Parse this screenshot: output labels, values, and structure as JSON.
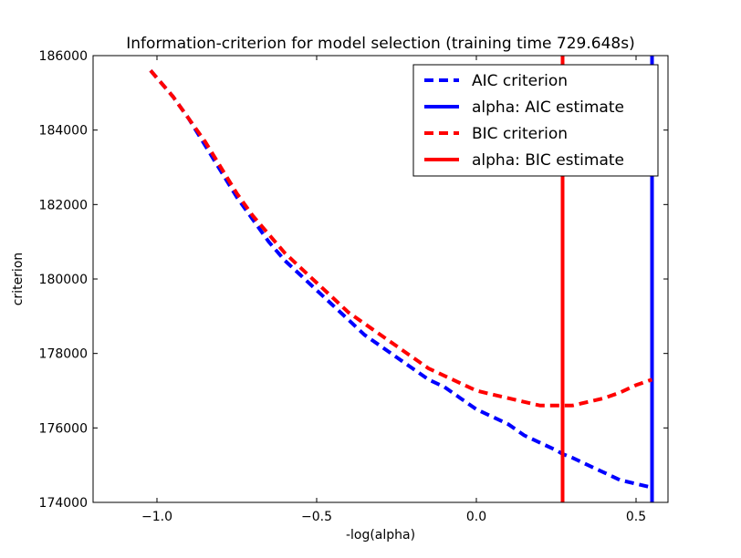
{
  "chart_data": {
    "type": "line",
    "title": "Information-criterion for model selection (training time 729.648s)",
    "xlabel": "-log(alpha)",
    "ylabel": "criterion",
    "xlim": [
      -1.2,
      0.6
    ],
    "ylim": [
      174000,
      186000
    ],
    "x_ticks": [
      -1.0,
      -0.5,
      0.0,
      0.5
    ],
    "x_tick_labels": [
      "−1.0",
      "−0.5",
      "0.0",
      "0.5"
    ],
    "y_ticks": [
      174000,
      176000,
      178000,
      180000,
      182000,
      184000,
      186000
    ],
    "y_tick_labels": [
      "174000",
      "176000",
      "178000",
      "180000",
      "182000",
      "184000",
      "186000"
    ],
    "grid": false,
    "legend_position": "top-right",
    "series": [
      {
        "name": "AIC criterion",
        "style": "dashed",
        "color": "#0000ff",
        "x": [
          -1.02,
          -0.95,
          -0.9,
          -0.85,
          -0.8,
          -0.75,
          -0.7,
          -0.65,
          -0.6,
          -0.55,
          -0.5,
          -0.45,
          -0.4,
          -0.35,
          -0.3,
          -0.25,
          -0.2,
          -0.15,
          -0.1,
          -0.05,
          0.0,
          0.05,
          0.1,
          0.15,
          0.2,
          0.25,
          0.27,
          0.3,
          0.35,
          0.4,
          0.45,
          0.5,
          0.55
        ],
        "y": [
          185600,
          184900,
          184300,
          183600,
          182900,
          182200,
          181600,
          181000,
          180500,
          180100,
          179700,
          179300,
          178900,
          178500,
          178200,
          177900,
          177600,
          177300,
          177100,
          176800,
          176500,
          176300,
          176100,
          175800,
          175600,
          175400,
          175300,
          175200,
          175000,
          174800,
          174600,
          174500,
          174400
        ]
      },
      {
        "name": "alpha: AIC estimate",
        "style": "solid",
        "color": "#0000ff",
        "vline": 0.55
      },
      {
        "name": "BIC criterion",
        "style": "dashed",
        "color": "#ff0000",
        "x": [
          -1.02,
          -0.95,
          -0.9,
          -0.85,
          -0.8,
          -0.75,
          -0.7,
          -0.65,
          -0.6,
          -0.55,
          -0.5,
          -0.45,
          -0.4,
          -0.35,
          -0.3,
          -0.25,
          -0.2,
          -0.15,
          -0.1,
          -0.05,
          0.0,
          0.05,
          0.1,
          0.15,
          0.2,
          0.25,
          0.27,
          0.3,
          0.35,
          0.4,
          0.45,
          0.5,
          0.55
        ],
        "y": [
          185600,
          184900,
          184300,
          183700,
          183000,
          182300,
          181700,
          181200,
          180700,
          180300,
          179900,
          179500,
          179100,
          178800,
          178500,
          178200,
          177900,
          177600,
          177400,
          177200,
          177000,
          176900,
          176800,
          176700,
          176600,
          176600,
          176600,
          176600,
          176700,
          176800,
          176950,
          177150,
          177300
        ]
      },
      {
        "name": "alpha: BIC estimate",
        "style": "solid",
        "color": "#ff0000",
        "vline": 0.27
      }
    ]
  }
}
